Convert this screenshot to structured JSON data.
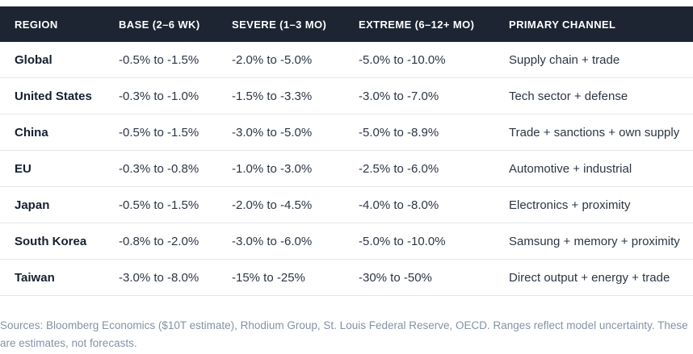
{
  "chart_data": {
    "type": "table",
    "columns": [
      "REGION",
      "BASE (2–6 WK)",
      "SEVERE (1–3 MO)",
      "EXTREME (6–12+ MO)",
      "PRIMARY CHANNEL"
    ],
    "rows": [
      [
        "Global",
        "-0.5% to -1.5%",
        "-2.0% to -5.0%",
        "-5.0% to -10.0%",
        "Supply chain + trade"
      ],
      [
        "United States",
        "-0.3% to -1.0%",
        "-1.5% to -3.3%",
        "-3.0% to -7.0%",
        "Tech sector + defense"
      ],
      [
        "China",
        "-0.5% to -1.5%",
        "-3.0% to -5.0%",
        "-5.0% to -8.9%",
        "Trade + sanctions + own supply"
      ],
      [
        "EU",
        "-0.3% to -0.8%",
        "-1.0% to -3.0%",
        "-2.5% to -6.0%",
        "Automotive + industrial"
      ],
      [
        "Japan",
        "-0.5% to -1.5%",
        "-2.0% to -4.5%",
        "-4.0% to -8.0%",
        "Electronics + proximity"
      ],
      [
        "South Korea",
        "-0.8% to -2.0%",
        "-3.0% to -6.0%",
        "-5.0% to -10.0%",
        "Samsung + memory + proximity"
      ],
      [
        "Taiwan",
        "-3.0% to -8.0%",
        "-15% to -25%",
        "-30% to -50%",
        "Direct output + energy + trade"
      ]
    ],
    "footnote": "Sources: Bloomberg Economics ($10T estimate), Rhodium Group, St. Louis Federal Reserve, OECD. Ranges reflect model uncertainty. These are estimates, not forecasts."
  },
  "colors": {
    "header_bg": "#1d2533",
    "header_text": "#ffffff",
    "region_text": "#16202e",
    "cell_text": "#2c3644",
    "row_border": "#e3e7eb",
    "footnote_text": "#8492a6"
  }
}
